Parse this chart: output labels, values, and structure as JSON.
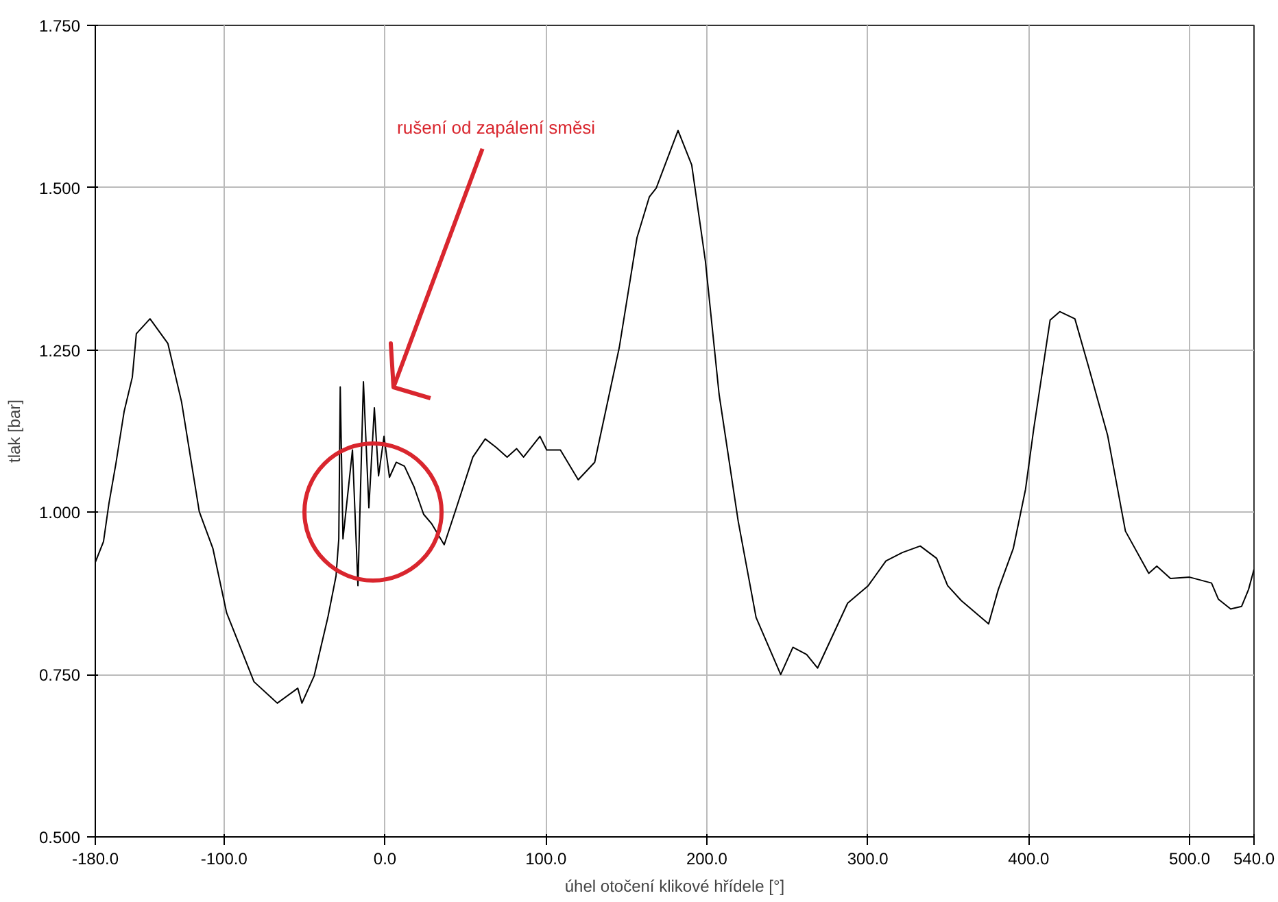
{
  "chart_data": {
    "type": "line",
    "xlabel": "úhel otočení klikové hřídele [°]",
    "ylabel": "tlak [bar]",
    "xlim": [
      -180,
      540
    ],
    "ylim": [
      0.5,
      1.75
    ],
    "xticks": [
      {
        "value": -180,
        "label": "-180.0"
      },
      {
        "value": -100,
        "label": "-100.0"
      },
      {
        "value": 0,
        "label": "0.0"
      },
      {
        "value": 100,
        "label": "100.0"
      },
      {
        "value": 200,
        "label": "200.0"
      },
      {
        "value": 300,
        "label": "300.0"
      },
      {
        "value": 400,
        "label": "400.0"
      },
      {
        "value": 500,
        "label": "500.0"
      },
      {
        "value": 540,
        "label": "540.0"
      }
    ],
    "yticks": [
      {
        "value": 0.5,
        "label": "0.500"
      },
      {
        "value": 0.75,
        "label": "0.750"
      },
      {
        "value": 1.0,
        "label": "1.000"
      },
      {
        "value": 1.25,
        "label": "1.250"
      },
      {
        "value": 1.5,
        "label": "1.500"
      },
      {
        "value": 1.75,
        "label": "1.750"
      }
    ],
    "grid": true,
    "marker": "none",
    "line_style": "solid",
    "x": [
      -180,
      -174.9,
      -171.5,
      -167.2,
      -162.1,
      -157.0,
      -154.5,
      -146.0,
      -134.9,
      -126.4,
      -115.4,
      -106.9,
      -98.4,
      -95.0,
      -81.4,
      -66.9,
      -54.2,
      -51.6,
      -44.0,
      -35.5,
      -30.4,
      -28.7,
      -27.8,
      -26.1,
      -20.2,
      -16.8,
      -13.4,
      -10.0,
      -6.6,
      -4.0,
      -0.6,
      2.8,
      7.0,
      12.1,
      18.1,
      24.0,
      29.1,
      36.8,
      43.6,
      54.6,
      62.3,
      69.1,
      75.9,
      81.8,
      86.1,
      96.3,
      100.5,
      109.0,
      120.1,
      130.3,
      145.6,
      156.6,
      164.3,
      168.5,
      182.1,
      190.6,
      199.1,
      207.6,
      219.5,
      230.6,
      245.9,
      253.5,
      262.0,
      268.8,
      287.5,
      300.3,
      311.3,
      321.5,
      332.6,
      342.8,
      349.6,
      358.1,
      375.1,
      381.1,
      390.4,
      398.0,
      403.1,
      413.3,
      419.3,
      428.7,
      437.1,
      449.0,
      460.1,
      474.6,
      479.6,
      488.1,
      500.0,
      513.6,
      517.9,
      525.5,
      532.3,
      536.6,
      540.0
    ],
    "series": [
      {
        "color": "#000000",
        "values": [
          0.923,
          0.955,
          1.014,
          1.075,
          1.155,
          1.208,
          1.275,
          1.298,
          1.26,
          1.17,
          1.001,
          0.944,
          0.845,
          0.824,
          0.739,
          0.706,
          0.729,
          0.706,
          0.748,
          0.838,
          0.902,
          0.959,
          1.193,
          0.959,
          1.096,
          0.887,
          1.201,
          1.007,
          1.161,
          1.056,
          1.117,
          1.054,
          1.077,
          1.071,
          1.039,
          0.997,
          0.982,
          0.95,
          1.001,
          1.085,
          1.113,
          1.1,
          1.085,
          1.098,
          1.085,
          1.117,
          1.096,
          1.096,
          1.05,
          1.077,
          1.254,
          1.423,
          1.486,
          1.499,
          1.588,
          1.535,
          1.387,
          1.182,
          0.986,
          0.838,
          0.75,
          0.792,
          0.781,
          0.76,
          0.86,
          0.887,
          0.925,
          0.938,
          0.948,
          0.929,
          0.887,
          0.864,
          0.828,
          0.881,
          0.944,
          1.035,
          1.128,
          1.296,
          1.309,
          1.298,
          1.225,
          1.119,
          0.971,
          0.906,
          0.917,
          0.898,
          0.9,
          0.891,
          0.866,
          0.851,
          0.855,
          0.881,
          0.912
        ]
      }
    ],
    "annotations": [
      "rušení od zapálení směsi"
    ]
  }
}
